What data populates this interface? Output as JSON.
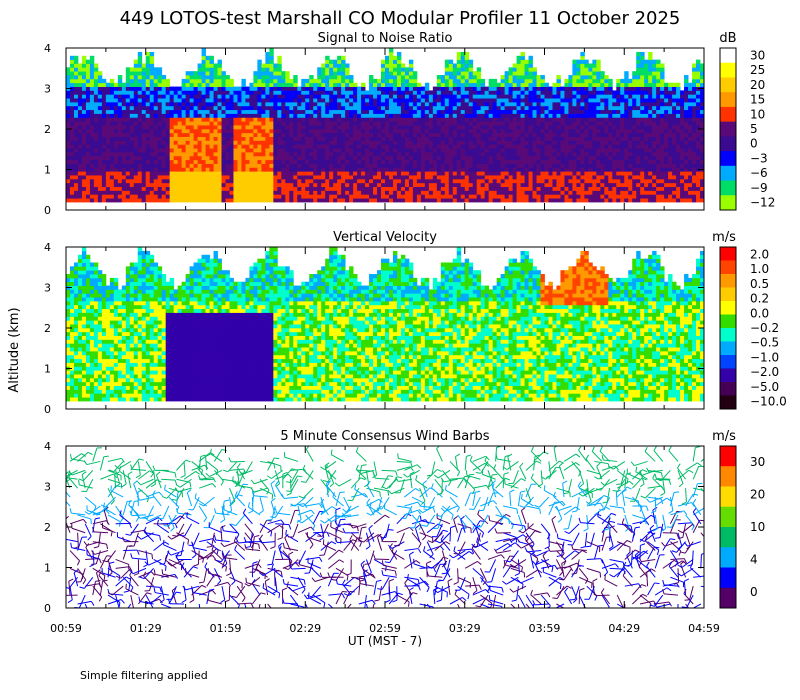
{
  "header": {
    "title": "449 LOTOS-test Marshall CO Modular Profiler 11 October 2025",
    "y_axis_label": "Altitude (km)",
    "x_axis_label": "UT  (MST - 7)",
    "footnote": "Simple filtering applied"
  },
  "chart_data": [
    {
      "type": "heatmap",
      "title": "Signal to Noise Ratio",
      "ylim": [
        0,
        4
      ],
      "y_ticks": [
        "0",
        "1",
        "2",
        "3",
        "4"
      ],
      "x_ticks": [
        "00:59",
        "01:29",
        "01:59",
        "02:29",
        "02:59",
        "03:29",
        "03:59",
        "04:29",
        "04:59"
      ],
      "colorbar": {
        "unit": "dB",
        "labels": [
          "30",
          "25",
          "20",
          "15",
          "10",
          "5",
          "0",
          "−3",
          "−6",
          "−9",
          "−12"
        ],
        "colors": [
          "#ffffff",
          "#ffff00",
          "#ffcc00",
          "#ff9900",
          "#ff3300",
          "#5a0a78",
          "#3a0a90",
          "#0000ff",
          "#00aaff",
          "#00dd66",
          "#99ff00"
        ]
      }
    },
    {
      "type": "heatmap",
      "title": "Vertical Velocity",
      "ylim": [
        0,
        4
      ],
      "y_ticks": [
        "0",
        "1",
        "2",
        "3",
        "4"
      ],
      "x_ticks": [
        "00:59",
        "01:29",
        "01:59",
        "02:29",
        "02:59",
        "03:29",
        "03:59",
        "04:29",
        "04:59"
      ],
      "colorbar": {
        "unit": "m/s",
        "labels": [
          "2.0",
          "1.0",
          "0.5",
          "0.2",
          "0.0",
          "−0.2",
          "−0.5",
          "−1.0",
          "−2.0",
          "−5.0",
          "−10.0"
        ],
        "colors": [
          "#ff0000",
          "#ff4400",
          "#ff9900",
          "#ffcc00",
          "#ffff00",
          "#33dd00",
          "#00ffcc",
          "#00aaff",
          "#0044ff",
          "#3300aa",
          "#440055",
          "#220011"
        ]
      }
    },
    {
      "type": "wind_barbs",
      "title": "5 Minute Consensus Wind Barbs",
      "ylim": [
        0,
        4
      ],
      "y_ticks": [
        "0",
        "1",
        "2",
        "3",
        "4"
      ],
      "x_ticks": [
        "00:59",
        "01:29",
        "01:59",
        "02:29",
        "02:59",
        "03:29",
        "03:59",
        "04:29",
        "04:59"
      ],
      "colorbar": {
        "unit": "m/s",
        "labels": [
          "30",
          "20",
          "10",
          "4",
          "0"
        ],
        "colors": [
          "#ff0000",
          "#ff8800",
          "#ffdd00",
          "#66dd00",
          "#00bb66",
          "#00aaff",
          "#0000ff",
          "#550066"
        ]
      }
    }
  ]
}
